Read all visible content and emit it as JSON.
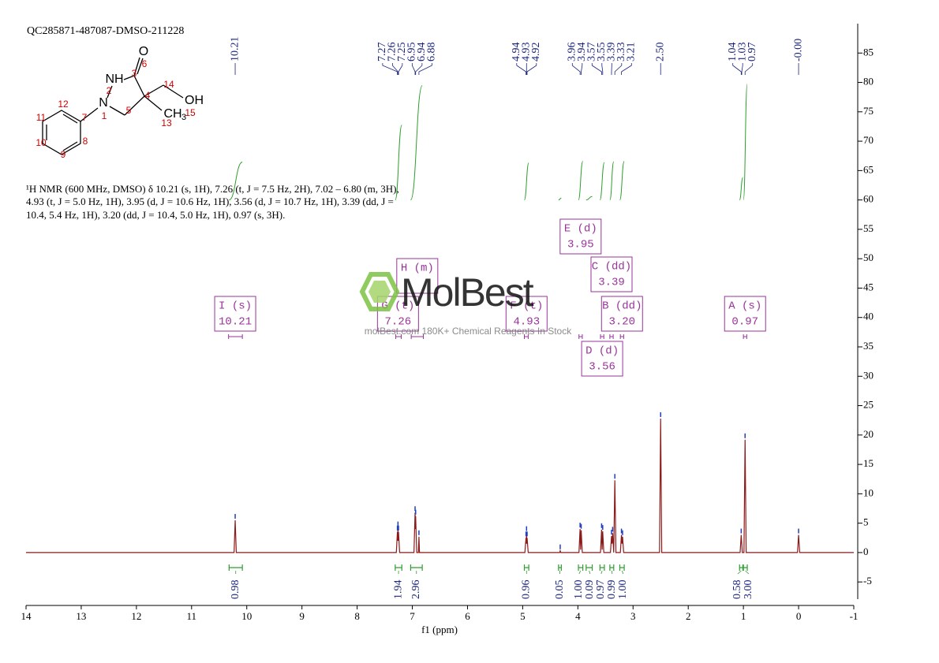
{
  "chart_data": {
    "type": "line",
    "title": "QC285871-487087-DMSO-211228",
    "xlabel": "f1 (ppm)",
    "xlim": [
      14,
      -1
    ],
    "xticks": [
      14,
      13,
      12,
      11,
      10,
      9,
      8,
      7,
      6,
      5,
      4,
      3,
      2,
      1,
      0,
      -1
    ],
    "ylim": [
      -9,
      90
    ],
    "yticks": [
      -5,
      0,
      5,
      10,
      15,
      20,
      25,
      30,
      35,
      40,
      45,
      50,
      55,
      60,
      65,
      70,
      75,
      80,
      85
    ],
    "color": "#8b1a1a",
    "peak_color": "#1f3fbf",
    "x": [
      14,
      10.23,
      10.21,
      10.19,
      7.29,
      7.27,
      7.265,
      7.26,
      7.255,
      7.25,
      7.23,
      6.97,
      6.95,
      6.945,
      6.94,
      6.92,
      6.89,
      6.88,
      6.87,
      4.96,
      4.94,
      4.935,
      4.93,
      4.925,
      4.92,
      4.9,
      4.33,
      4.32,
      4.31,
      3.98,
      3.96,
      3.95,
      3.94,
      3.92,
      3.59,
      3.57,
      3.56,
      3.55,
      3.53,
      3.41,
      3.39,
      3.38,
      3.37,
      3.35,
      3.33,
      3.31,
      3.23,
      3.21,
      3.2,
      3.19,
      3.17,
      2.52,
      2.5,
      2.48,
      1.06,
      1.04,
      1.02,
      0.99,
      0.97,
      0.95,
      0.02,
      0.0,
      -0.02,
      -1
    ],
    "values": [
      0,
      0,
      5.5,
      0,
      0,
      3.5,
      2,
      4.2,
      2,
      3.5,
      0,
      0,
      6.8,
      4,
      6.2,
      0,
      0,
      2.7,
      0,
      0,
      2.5,
      1.5,
      3.4,
      1.5,
      2.5,
      0,
      0,
      0.3,
      0,
      0,
      4.0,
      0.5,
      3.8,
      0,
      0,
      3.9,
      0.5,
      3.6,
      0,
      0,
      2.8,
      1.5,
      3.3,
      0,
      12.3,
      0,
      0,
      3.0,
      1.5,
      2.7,
      0,
      0,
      22.8,
      0,
      0,
      3.0,
      0,
      0,
      19.2,
      0,
      0,
      3.0,
      0,
      0
    ],
    "peak_labels": [
      10.21,
      7.27,
      7.26,
      7.25,
      6.95,
      6.94,
      6.88,
      4.94,
      4.93,
      4.92,
      3.96,
      3.94,
      3.57,
      3.55,
      3.39,
      3.33,
      3.21,
      {
        "value": 2.5,
        "label": "2.50"
      },
      1.04,
      1.03,
      0.97,
      {
        "value": 0,
        "label": "-0.00"
      }
    ],
    "integral_color": "#2e9e2e",
    "integrals": [
      {
        "range": [
          10.32,
          10.08
        ],
        "value": 0.98
      },
      {
        "range": [
          7.31,
          7.19
        ],
        "value": 1.94
      },
      {
        "range": [
          7.03,
          6.82
        ],
        "value": 2.96
      },
      {
        "range": [
          4.97,
          4.89
        ],
        "value": 0.96
      },
      {
        "range": [
          4.35,
          4.3
        ],
        "value": 0.05
      },
      {
        "range": [
          3.99,
          3.91
        ],
        "value": 1,
        "label": "1.00"
      },
      {
        "range": [
          3.85,
          3.74
        ],
        "value": 0.09
      },
      {
        "range": [
          3.6,
          3.52
        ],
        "value": 0.97
      },
      {
        "range": [
          3.42,
          3.35
        ],
        "value": 0.99
      },
      {
        "range": [
          3.24,
          3.16
        ],
        "value": 1,
        "label": "1.00"
      },
      {
        "range": [
          1.07,
          1.01
        ],
        "value": 0.58
      },
      {
        "range": [
          1.0,
          0.93
        ],
        "value": 3,
        "label": "3.00"
      }
    ],
    "multiplet_color": "#993399",
    "multiplets": [
      {
        "name": "I (s)",
        "shift": 10.21,
        "range": [
          10.33,
          10.08
        ]
      },
      {
        "name": "H (m)",
        "range": [
          7.02,
          6.8
        ]
      },
      {
        "name": "G (t)",
        "shift": 7.26,
        "range": [
          7.3,
          7.2
        ]
      },
      {
        "name": "F (t)",
        "shift": 4.93,
        "range": [
          4.97,
          4.9
        ]
      },
      {
        "name": "E (d)",
        "shift": 3.95,
        "range": [
          3.98,
          3.92
        ]
      },
      {
        "name": "C (dd)",
        "shift": 3.39,
        "range": [
          3.42,
          3.36
        ]
      },
      {
        "name": "B (dd)",
        "shift": {
          "value": 3.2,
          "label": "3.20"
        },
        "range": [
          3.23,
          3.17
        ]
      },
      {
        "name": "D (d)",
        "shift": 3.56,
        "range": [
          3.59,
          3.53
        ]
      },
      {
        "name": "A (s)",
        "shift": 0.97,
        "range": [
          1.0,
          0.94
        ]
      }
    ]
  },
  "description": [
    "¹H NMR (600 MHz, DMSO) δ 10.21 (s, 1H), 7.26 (t, J = 7.5 Hz, 2H), 7.02 – 6.80 (m, 3H),",
    "4.93 (t, J = 5.0 Hz, 1H), 3.95 (d, J = 10.6 Hz, 1H), 3.56 (d, J = 10.7 Hz, 1H), 3.39 (dd, J =",
    "10.4, 5.4 Hz, 1H), 3.20 (dd, J = 10.4, 5.0 Hz, 1H), 0.97 (s, 3H)."
  ],
  "structure": {
    "atoms": [
      "O",
      "NH",
      "N",
      "OH",
      "CH",
      "3"
    ],
    "numbers": [
      "6",
      "3",
      "2",
      "14",
      "4",
      "12",
      "1",
      "7",
      "5",
      "15",
      "11",
      "13",
      "10",
      "8",
      "9"
    ]
  },
  "watermark": {
    "brand": "MolBest",
    "tagline": "molBest.com 180K+ Chemical Reagents In Stock"
  }
}
